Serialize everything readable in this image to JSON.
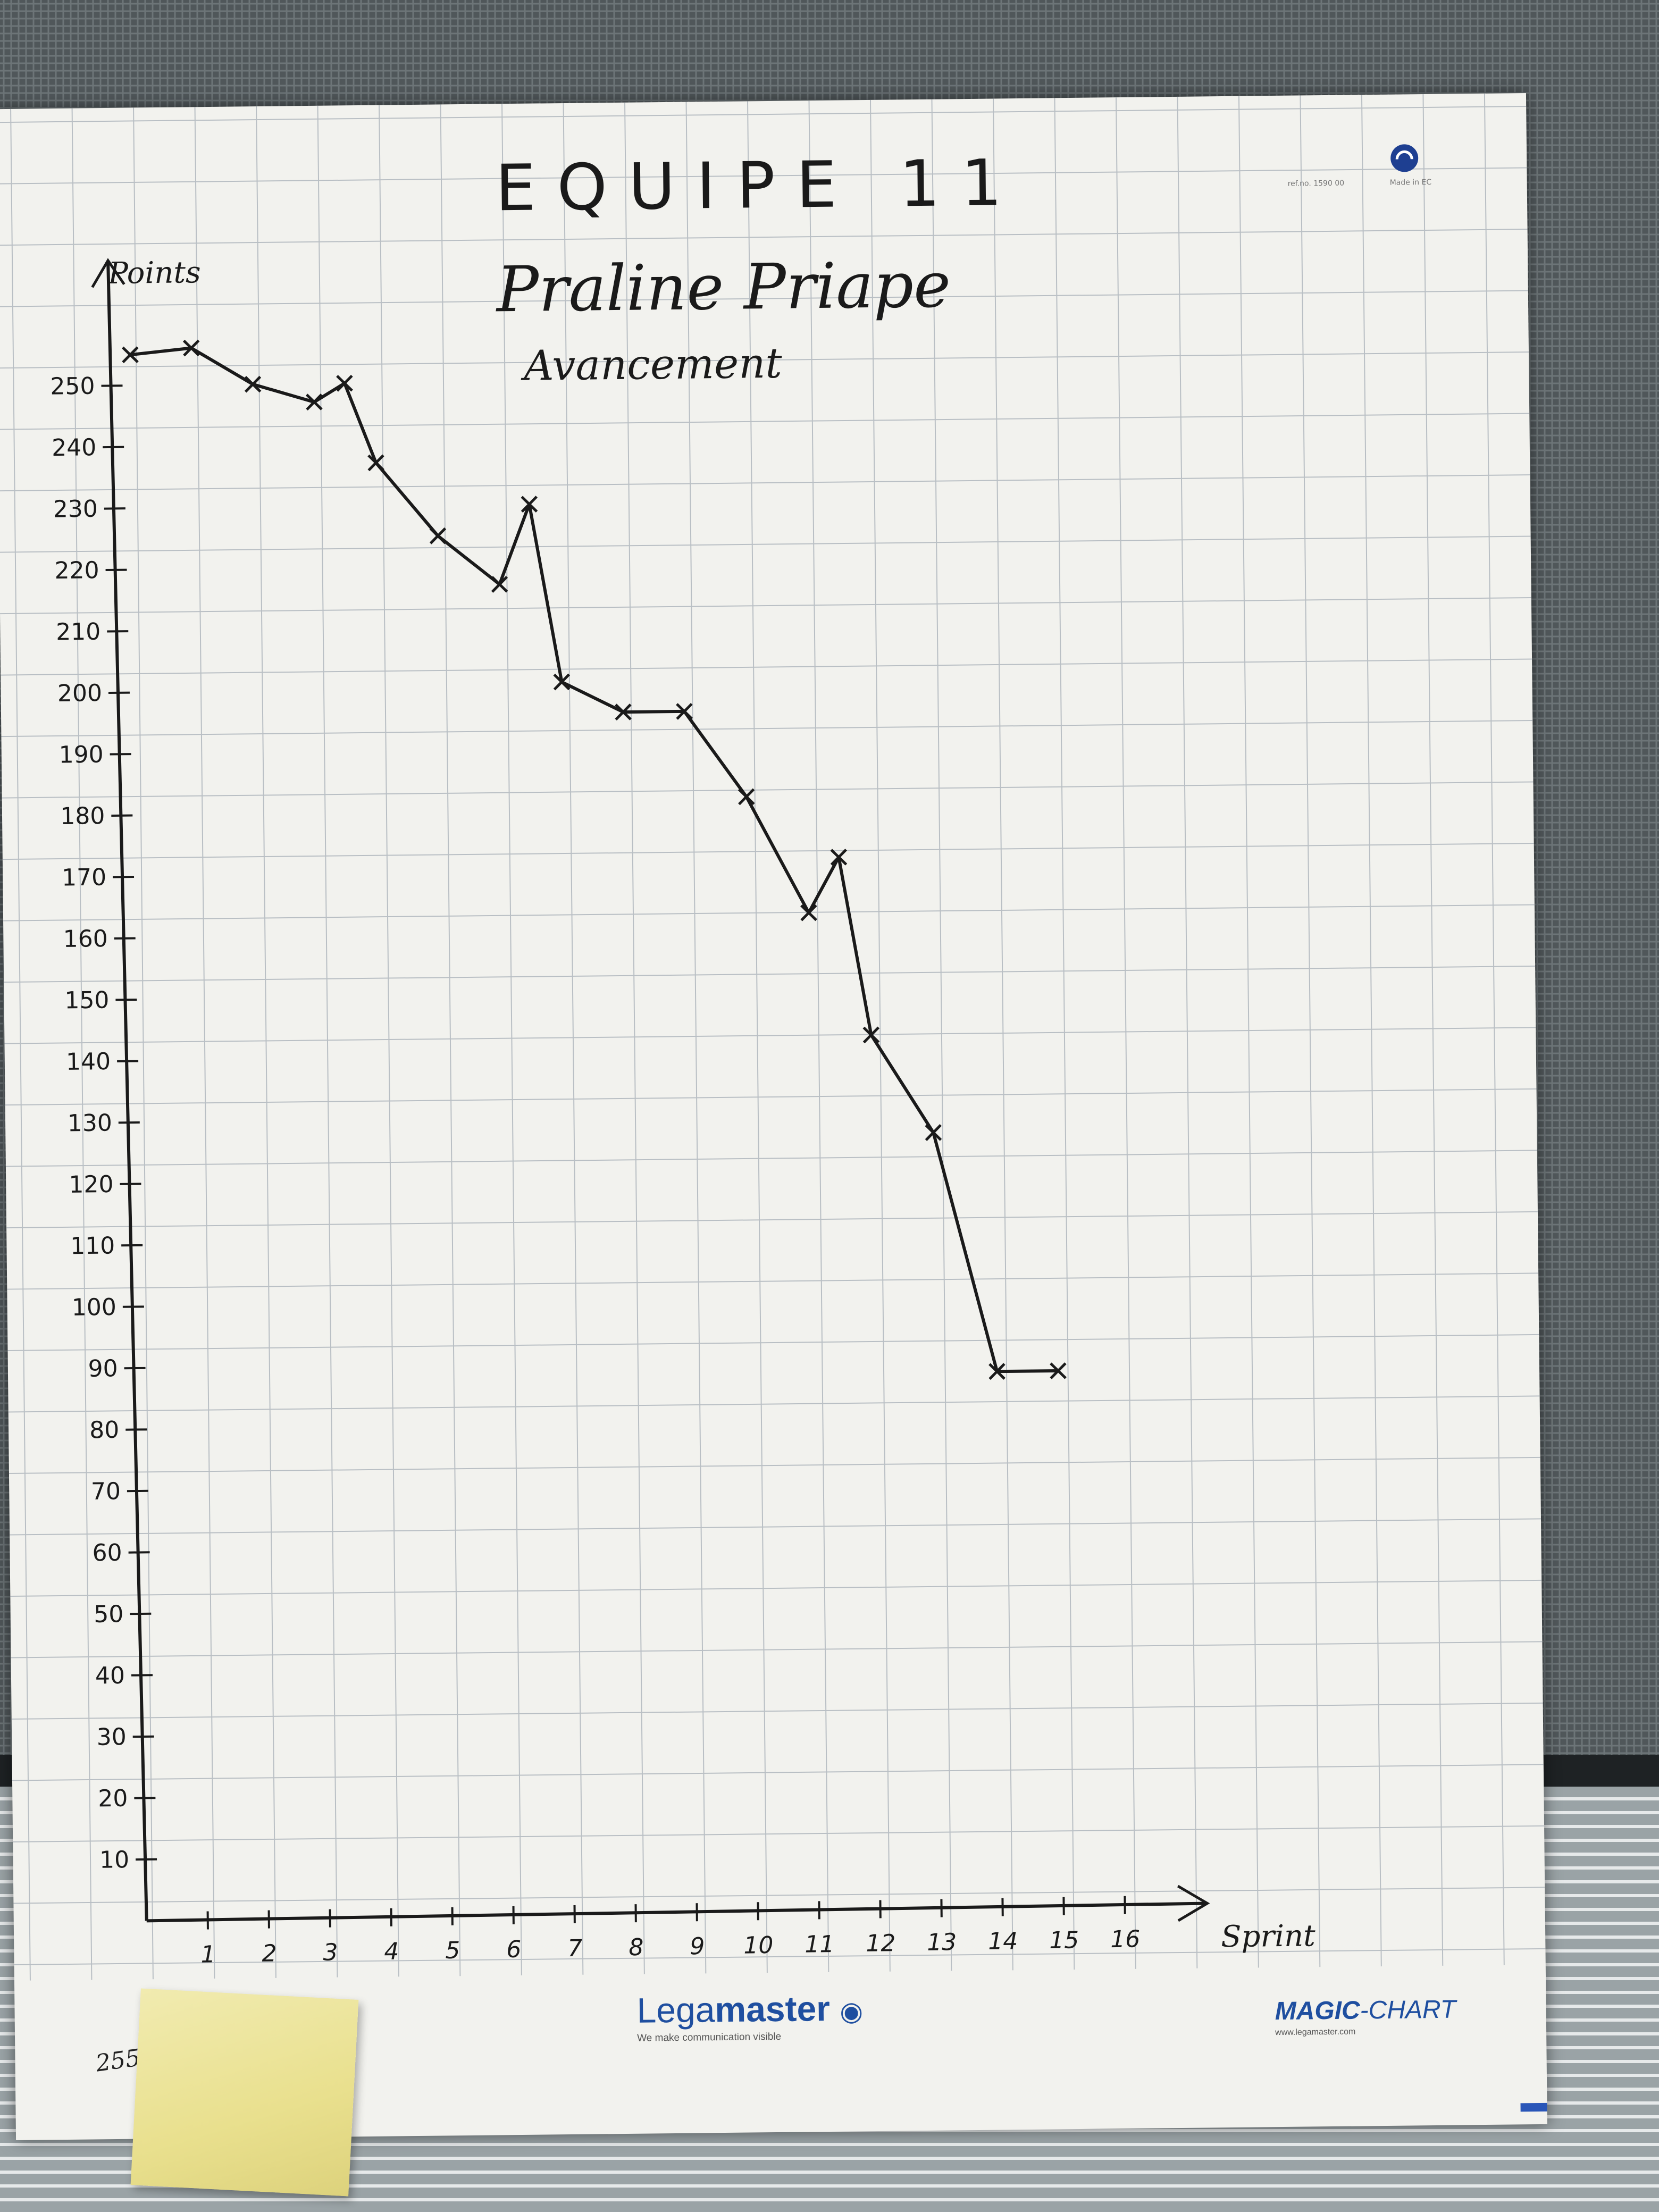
{
  "sheet": {
    "title": "EQUIPE 11",
    "subtitle": "Praline Priape",
    "caption": "Avancement",
    "ref_text": "ref.no. 1590 00",
    "made_in": "Made in EC",
    "side_note": "255"
  },
  "branding": {
    "legamaster_light": "Lega",
    "legamaster_bold": "master",
    "legamaster_tagline": "We make communication visible",
    "magic_bold": "MAGIC",
    "magic_rest": "-CHART",
    "magic_url": "www.legamaster.com",
    "brand_color": "#1f4fa0"
  },
  "chart_data": {
    "type": "line",
    "title": "EQUIPE 11",
    "subtitle": "Praline Priape",
    "xlabel": "Sprint",
    "ylabel": "Points",
    "xlim": [
      0,
      17
    ],
    "ylim": [
      0,
      260
    ],
    "x_ticks": [
      "1",
      "2",
      "3",
      "4",
      "5",
      "6",
      "7",
      "8",
      "9",
      "10",
      "11",
      "12",
      "13",
      "14",
      "15",
      "16"
    ],
    "y_ticks": [
      "10",
      "20",
      "30",
      "40",
      "50",
      "60",
      "70",
      "80",
      "90",
      "100",
      "110",
      "120",
      "130",
      "140",
      "150",
      "160",
      "170",
      "180",
      "190",
      "200",
      "210",
      "220",
      "230",
      "240",
      "250"
    ],
    "grid": true,
    "series": [
      {
        "values": [
          {
            "x": 0,
            "y": 255
          },
          {
            "x": 1,
            "y": 256
          },
          {
            "x": 2,
            "y": 250
          },
          {
            "x": 3,
            "y": 247
          },
          {
            "x": 3.5,
            "y": 250
          },
          {
            "x": 4,
            "y": 237
          },
          {
            "x": 5,
            "y": 225
          },
          {
            "x": 6,
            "y": 217
          },
          {
            "x": 6.5,
            "y": 230
          },
          {
            "x": 7,
            "y": 201
          },
          {
            "x": 8,
            "y": 196
          },
          {
            "x": 9,
            "y": 196
          },
          {
            "x": 10,
            "y": 182
          },
          {
            "x": 11,
            "y": 163
          },
          {
            "x": 11.5,
            "y": 172
          },
          {
            "x": 12,
            "y": 143
          },
          {
            "x": 13,
            "y": 127
          },
          {
            "x": 14,
            "y": 88
          },
          {
            "x": 15,
            "y": 88
          }
        ]
      }
    ],
    "line_color": "#1a1a1a",
    "grid_color": "#b9bfc4"
  }
}
